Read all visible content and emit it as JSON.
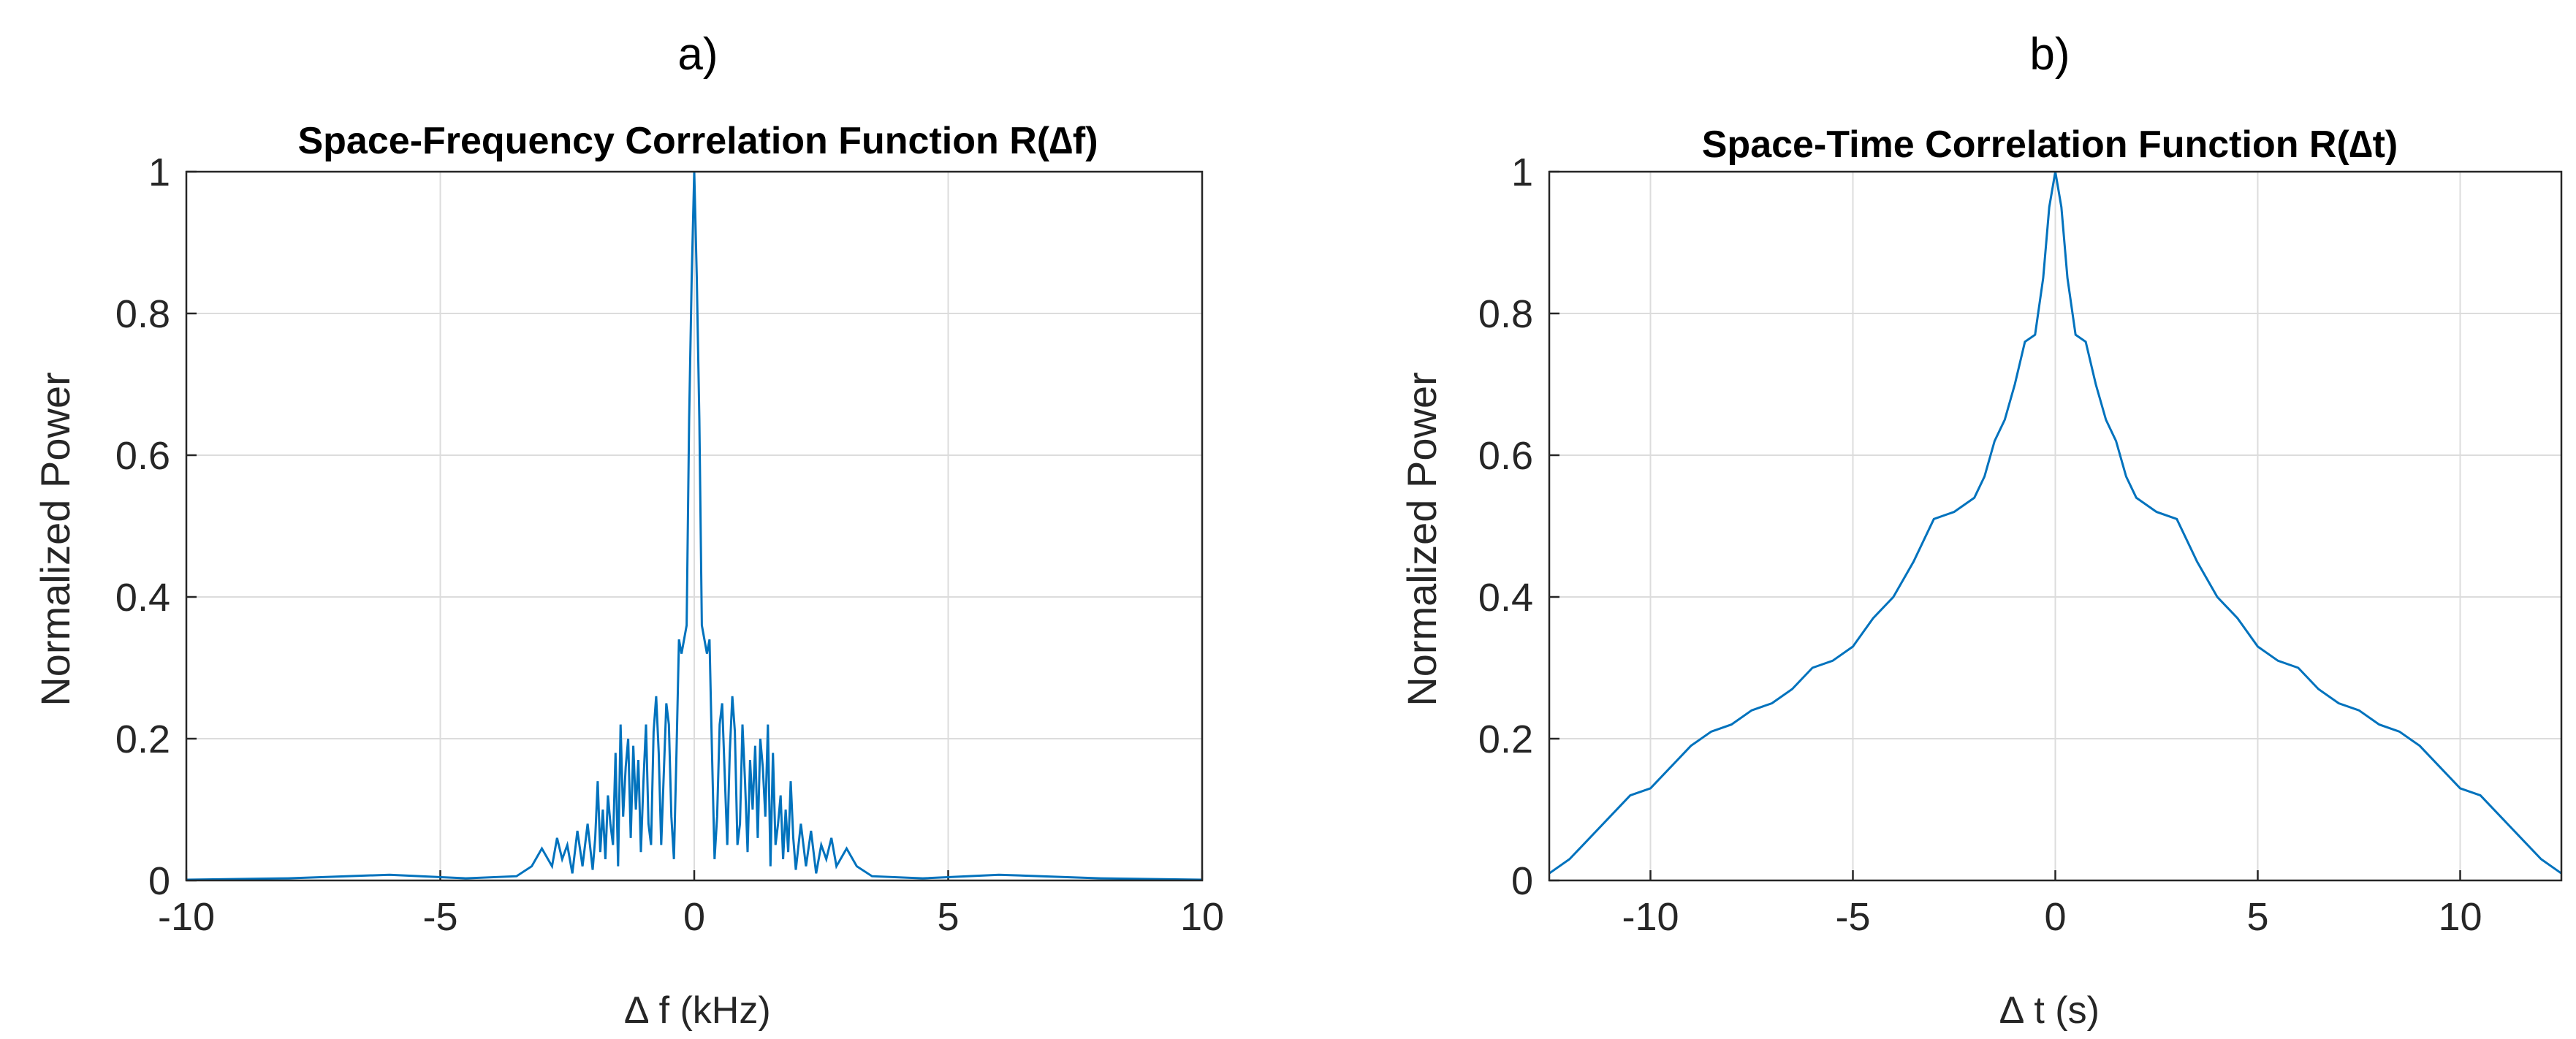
{
  "panels": [
    {
      "label": "a)"
    },
    {
      "label": "b)"
    }
  ],
  "chart_data": [
    {
      "type": "line",
      "title": "Space-Frequency Correlation Function R(∆f)",
      "xlabel": "∆ f (kHz)",
      "ylabel": "Normalized Power",
      "xlim": [
        -10,
        10
      ],
      "ylim": [
        0,
        1
      ],
      "xticks": [
        -10,
        -5,
        0,
        5,
        10
      ],
      "xtick_labels": [
        "-10",
        "-5",
        "0",
        "5",
        "10"
      ],
      "yticks": [
        0,
        0.2,
        0.4,
        0.6,
        0.8,
        1
      ],
      "ytick_labels": [
        "0",
        "0.2",
        "0.4",
        "0.6",
        "0.8",
        "1"
      ],
      "grid": true,
      "line_color": "#0072BD",
      "series": [
        {
          "name": "R(∆f)",
          "x": [
            -10,
            -8,
            -6,
            -4.5,
            -3.5,
            -3.2,
            -3.0,
            -2.8,
            -2.7,
            -2.6,
            -2.5,
            -2.4,
            -2.3,
            -2.2,
            -2.1,
            -2.0,
            -1.95,
            -1.9,
            -1.85,
            -1.8,
            -1.75,
            -1.7,
            -1.65,
            -1.6,
            -1.55,
            -1.5,
            -1.45,
            -1.4,
            -1.35,
            -1.3,
            -1.25,
            -1.2,
            -1.15,
            -1.1,
            -1.05,
            -1.0,
            -0.95,
            -0.9,
            -0.85,
            -0.8,
            -0.75,
            -0.7,
            -0.65,
            -0.6,
            -0.55,
            -0.5,
            -0.45,
            -0.4,
            -0.35,
            -0.3,
            -0.25,
            -0.2,
            -0.15,
            -0.1,
            -0.05,
            0,
            0.05,
            0.1,
            0.15,
            0.2,
            0.25,
            0.3,
            0.35,
            0.4,
            0.45,
            0.5,
            0.55,
            0.6,
            0.65,
            0.7,
            0.75,
            0.8,
            0.85,
            0.9,
            0.95,
            1.0,
            1.05,
            1.1,
            1.15,
            1.2,
            1.25,
            1.3,
            1.35,
            1.4,
            1.45,
            1.5,
            1.55,
            1.6,
            1.65,
            1.7,
            1.75,
            1.8,
            1.85,
            1.9,
            1.95,
            2.0,
            2.1,
            2.2,
            2.3,
            2.4,
            2.5,
            2.6,
            2.7,
            2.8,
            3.0,
            3.2,
            3.5,
            4.5,
            6,
            8,
            10
          ],
          "y": [
            0.001,
            0.003,
            0.008,
            0.003,
            0.006,
            0.02,
            0.045,
            0.02,
            0.06,
            0.03,
            0.05,
            0.01,
            0.07,
            0.02,
            0.08,
            0.015,
            0.06,
            0.14,
            0.04,
            0.1,
            0.03,
            0.12,
            0.08,
            0.05,
            0.18,
            0.02,
            0.22,
            0.09,
            0.16,
            0.2,
            0.06,
            0.19,
            0.1,
            0.17,
            0.04,
            0.14,
            0.22,
            0.08,
            0.05,
            0.21,
            0.26,
            0.18,
            0.05,
            0.15,
            0.25,
            0.22,
            0.09,
            0.03,
            0.18,
            0.34,
            0.32,
            0.34,
            0.36,
            0.65,
            0.85,
            1.0,
            0.85,
            0.65,
            0.36,
            0.34,
            0.32,
            0.34,
            0.18,
            0.03,
            0.09,
            0.22,
            0.25,
            0.15,
            0.05,
            0.18,
            0.26,
            0.21,
            0.05,
            0.08,
            0.22,
            0.14,
            0.04,
            0.17,
            0.1,
            0.19,
            0.06,
            0.2,
            0.16,
            0.09,
            0.22,
            0.02,
            0.18,
            0.05,
            0.08,
            0.12,
            0.03,
            0.1,
            0.04,
            0.14,
            0.06,
            0.015,
            0.08,
            0.02,
            0.07,
            0.01,
            0.05,
            0.03,
            0.06,
            0.02,
            0.045,
            0.02,
            0.006,
            0.003,
            0.008,
            0.003,
            0.001
          ]
        }
      ]
    },
    {
      "type": "line",
      "title": "Space-Time Correlation Function R(∆t)",
      "xlabel": "∆ t (s)",
      "ylabel": "Normalized Power",
      "xlim": [
        -12.5,
        12.5
      ],
      "ylim": [
        0,
        1
      ],
      "xticks": [
        -10,
        -5,
        0,
        5,
        10
      ],
      "xtick_labels": [
        "-10",
        "-5",
        "0",
        "5",
        "10"
      ],
      "yticks": [
        0,
        0.2,
        0.4,
        0.6,
        0.8,
        1
      ],
      "ytick_labels": [
        "0",
        "0.2",
        "0.4",
        "0.6",
        "0.8",
        "1"
      ],
      "grid": true,
      "line_color": "#0072BD",
      "series": [
        {
          "name": "R(∆t)",
          "x": [
            -12.5,
            -12,
            -11.5,
            -11,
            -10.5,
            -10,
            -9.5,
            -9,
            -8.5,
            -8,
            -7.5,
            -7,
            -6.5,
            -6,
            -5.5,
            -5,
            -4.5,
            -4,
            -3.5,
            -3,
            -2.5,
            -2,
            -1.75,
            -1.5,
            -1.25,
            -1,
            -0.75,
            -0.5,
            -0.3,
            -0.15,
            0,
            0.15,
            0.3,
            0.5,
            0.75,
            1,
            1.25,
            1.5,
            1.75,
            2,
            2.5,
            3,
            3.5,
            4,
            4.5,
            5,
            5.5,
            6,
            6.5,
            7,
            7.5,
            8,
            8.5,
            9,
            9.5,
            10,
            10.5,
            11,
            11.5,
            12,
            12.5
          ],
          "y": [
            0.01,
            0.03,
            0.06,
            0.09,
            0.12,
            0.13,
            0.16,
            0.19,
            0.21,
            0.22,
            0.24,
            0.25,
            0.27,
            0.3,
            0.31,
            0.33,
            0.37,
            0.4,
            0.45,
            0.51,
            0.52,
            0.54,
            0.57,
            0.62,
            0.65,
            0.7,
            0.76,
            0.77,
            0.85,
            0.95,
            1.0,
            0.95,
            0.85,
            0.77,
            0.76,
            0.7,
            0.65,
            0.62,
            0.57,
            0.54,
            0.52,
            0.51,
            0.45,
            0.4,
            0.37,
            0.33,
            0.31,
            0.3,
            0.27,
            0.25,
            0.24,
            0.22,
            0.21,
            0.19,
            0.16,
            0.13,
            0.12,
            0.09,
            0.06,
            0.03,
            0.01
          ]
        }
      ]
    }
  ]
}
